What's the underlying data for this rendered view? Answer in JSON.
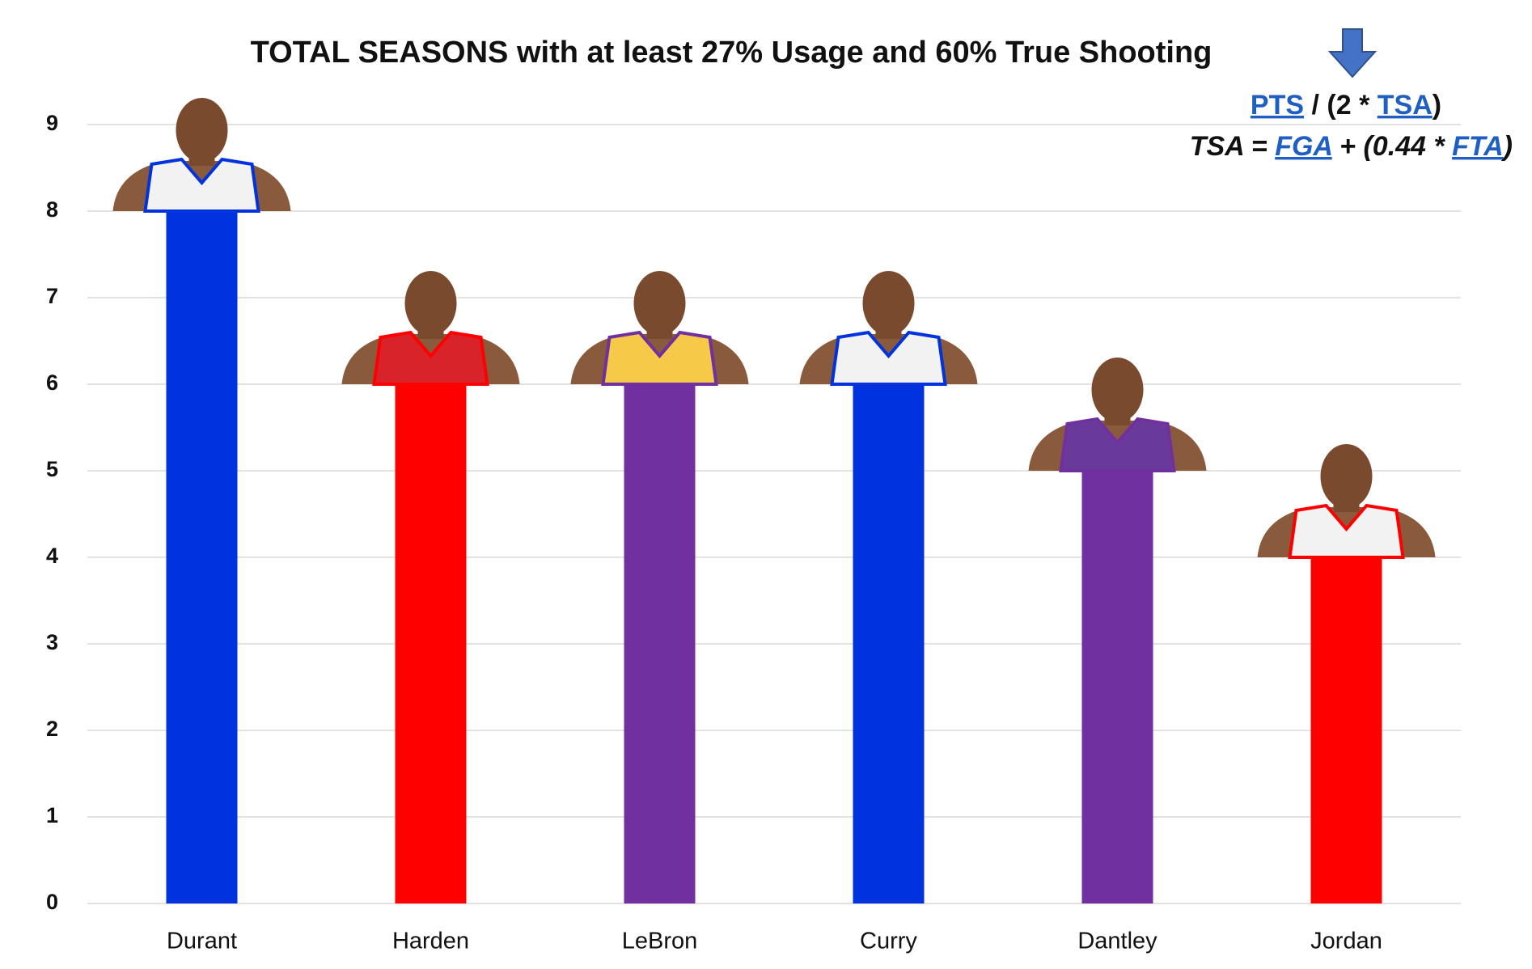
{
  "chart_data": {
    "type": "bar",
    "title": "TOTAL SEASONS with at least 27% Usage and 60% True Shooting",
    "categories": [
      "Durant",
      "Harden",
      "LeBron",
      "Curry",
      "Dantley",
      "Jordan"
    ],
    "values": [
      8,
      6,
      6,
      6,
      5,
      4
    ],
    "colors": [
      "#0033dd",
      "#ff0000",
      "#7030a0",
      "#0033dd",
      "#7030a0",
      "#ff0000"
    ],
    "ylim": [
      0,
      9
    ],
    "yticks": [
      0,
      1,
      2,
      3,
      4,
      5,
      6,
      7,
      8,
      9
    ],
    "grid": true,
    "annotations": [
      [
        {
          "text": "PTS",
          "link": true
        },
        {
          "text": " / (2 * ",
          "link": false
        },
        {
          "text": "TSA",
          "link": true
        },
        {
          "text": ")",
          "link": false
        }
      ],
      [
        {
          "text": "TSA = ",
          "link": false
        },
        {
          "text": "FGA",
          "link": true
        },
        {
          "text": " + (0.44 * ",
          "link": false
        },
        {
          "text": "FTA",
          "link": true
        },
        {
          "text": ")",
          "link": false
        }
      ]
    ]
  }
}
